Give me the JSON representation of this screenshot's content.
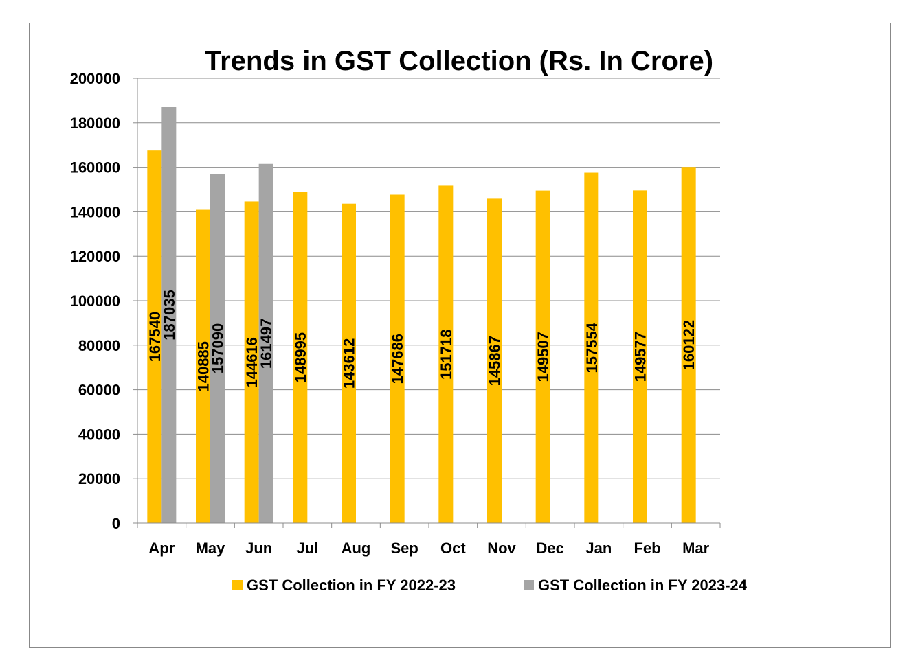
{
  "chart_data": {
    "type": "bar",
    "title": "Trends in GST Collection (Rs. In Crore)",
    "xlabel": "",
    "ylabel": "",
    "ylim": [
      0,
      200000
    ],
    "yticks": [
      0,
      20000,
      40000,
      60000,
      80000,
      100000,
      120000,
      140000,
      160000,
      180000,
      200000
    ],
    "grid": true,
    "legend_position": "bottom",
    "categories": [
      "Apr",
      "May",
      "Jun",
      "Jul",
      "Aug",
      "Sep",
      "Oct",
      "Nov",
      "Dec",
      "Jan",
      "Feb",
      "Mar"
    ],
    "series": [
      {
        "name": "GST Collection in FY 2022-23",
        "color": "#FFC000",
        "values": [
          167540,
          140885,
          144616,
          148995,
          143612,
          147686,
          151718,
          145867,
          149507,
          157554,
          149577,
          160122
        ]
      },
      {
        "name": "GST Collection in FY 2023-24",
        "color": "#A5A5A5",
        "values": [
          187035,
          157090,
          161497,
          null,
          null,
          null,
          null,
          null,
          null,
          null,
          null,
          null
        ]
      }
    ],
    "data_labels": true
  }
}
